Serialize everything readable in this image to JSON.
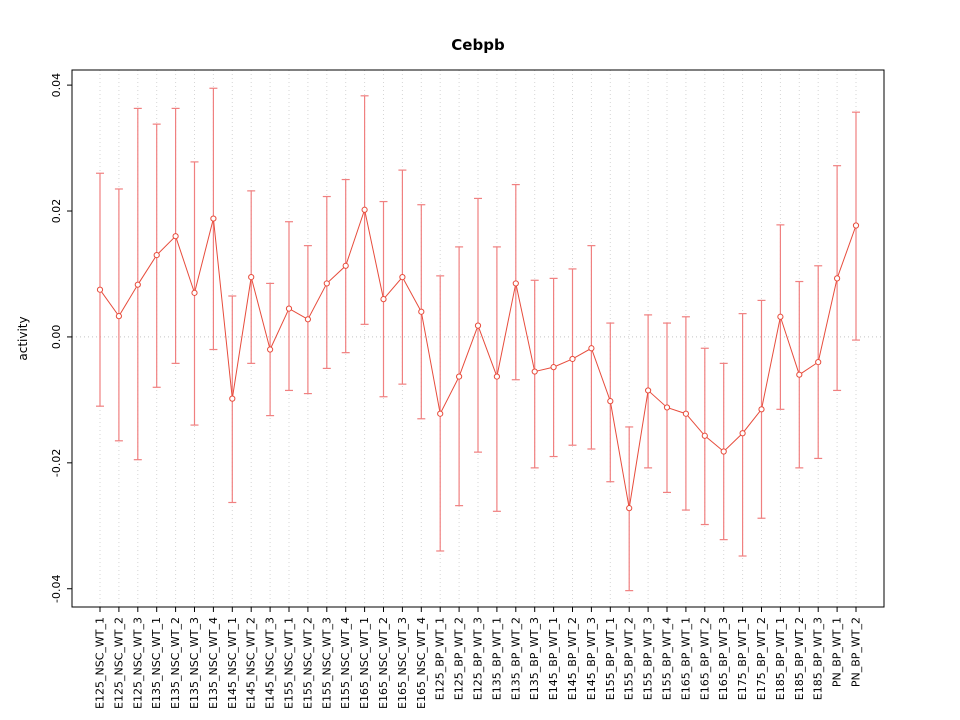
{
  "window": {
    "background": "#ffffff"
  },
  "chart_data": {
    "type": "line",
    "title": "Cebpb",
    "xlabel": "",
    "ylabel": "activity",
    "ylim": [
      -0.0429,
      0.0424
    ],
    "yticks": [
      -0.04,
      -0.02,
      0,
      0.02,
      0.04
    ],
    "ytick_labels": [
      "-0.04",
      "-0.02",
      "0.00",
      "0.02",
      "0.04"
    ],
    "grid": "vertical-dotted-per-category",
    "reference_line_y": 0,
    "error_bars": true,
    "marker": "open-circle",
    "legend_position": "none",
    "colors": {
      "series": "#e74c3c",
      "error_bar": "#f08080",
      "grid": "#d6d6d6",
      "zero_line": "#c4c4c4",
      "axis": "#000000"
    },
    "categories": [
      "E125_NSC_WT_1",
      "E125_NSC_WT_2",
      "E125_NSC_WT_3",
      "E135_NSC_WT_1",
      "E135_NSC_WT_2",
      "E135_NSC_WT_3",
      "E135_NSC_WT_4",
      "E145_NSC_WT_1",
      "E145_NSC_WT_2",
      "E145_NSC_WT_3",
      "E155_NSC_WT_1",
      "E155_NSC_WT_2",
      "E155_NSC_WT_3",
      "E155_NSC_WT_4",
      "E165_NSC_WT_1",
      "E165_NSC_WT_2",
      "E165_NSC_WT_3",
      "E165_NSC_WT_4",
      "E125_BP_WT_1",
      "E125_BP_WT_2",
      "E125_BP_WT_3",
      "E135_BP_WT_1",
      "E135_BP_WT_2",
      "E135_BP_WT_3",
      "E145_BP_WT_1",
      "E145_BP_WT_2",
      "E145_BP_WT_3",
      "E155_BP_WT_1",
      "E155_BP_WT_2",
      "E155_BP_WT_3",
      "E155_BP_WT_4",
      "E165_BP_WT_1",
      "E165_BP_WT_2",
      "E165_BP_WT_3",
      "E175_BP_WT_1",
      "E175_BP_WT_2",
      "E185_BP_WT_1",
      "E185_BP_WT_2",
      "E185_BP_WT_3",
      "PN_BP_WT_1",
      "PN_BP_WT_2"
    ],
    "series": [
      {
        "name": "activity",
        "values": [
          0.0075,
          0.0033,
          0.0083,
          0.013,
          0.016,
          0.007,
          0.0188,
          -0.0098,
          0.0095,
          -0.002,
          0.0045,
          0.0028,
          0.0085,
          0.0113,
          0.0202,
          0.006,
          0.0095,
          0.004,
          -0.0122,
          -0.0063,
          0.0018,
          -0.0063,
          0.0085,
          -0.0055,
          -0.0048,
          -0.0035,
          -0.0018,
          -0.0102,
          -0.0272,
          -0.0085,
          -0.0112,
          -0.0122,
          -0.0157,
          -0.0182,
          -0.0153,
          -0.0115,
          0.0032,
          -0.006,
          -0.004,
          0.0093,
          0.0177
        ],
        "ci_low": [
          -0.011,
          -0.0165,
          -0.0195,
          -0.008,
          -0.0042,
          -0.014,
          -0.002,
          -0.0263,
          -0.0042,
          -0.0125,
          -0.0085,
          -0.009,
          -0.005,
          -0.0025,
          0.002,
          -0.0095,
          -0.0075,
          -0.013,
          -0.034,
          -0.0268,
          -0.0183,
          -0.0277,
          -0.0068,
          -0.0208,
          -0.019,
          -0.0172,
          -0.0178,
          -0.023,
          -0.0403,
          -0.0208,
          -0.0247,
          -0.0275,
          -0.0298,
          -0.0322,
          -0.0348,
          -0.0288,
          -0.0115,
          -0.0208,
          -0.0193,
          -0.0085,
          -0.0005
        ],
        "ci_high": [
          0.026,
          0.0235,
          0.0363,
          0.0338,
          0.0363,
          0.0278,
          0.0395,
          0.0065,
          0.0232,
          0.0085,
          0.0183,
          0.0145,
          0.0223,
          0.025,
          0.0383,
          0.0215,
          0.0265,
          0.021,
          0.0097,
          0.0143,
          0.022,
          0.0143,
          0.0242,
          0.009,
          0.0093,
          0.0108,
          0.0145,
          0.0022,
          -0.0143,
          0.0035,
          0.0022,
          0.0032,
          -0.0018,
          -0.0042,
          0.0037,
          0.0058,
          0.0178,
          0.0088,
          0.0113,
          0.0272,
          0.0357
        ]
      }
    ]
  }
}
